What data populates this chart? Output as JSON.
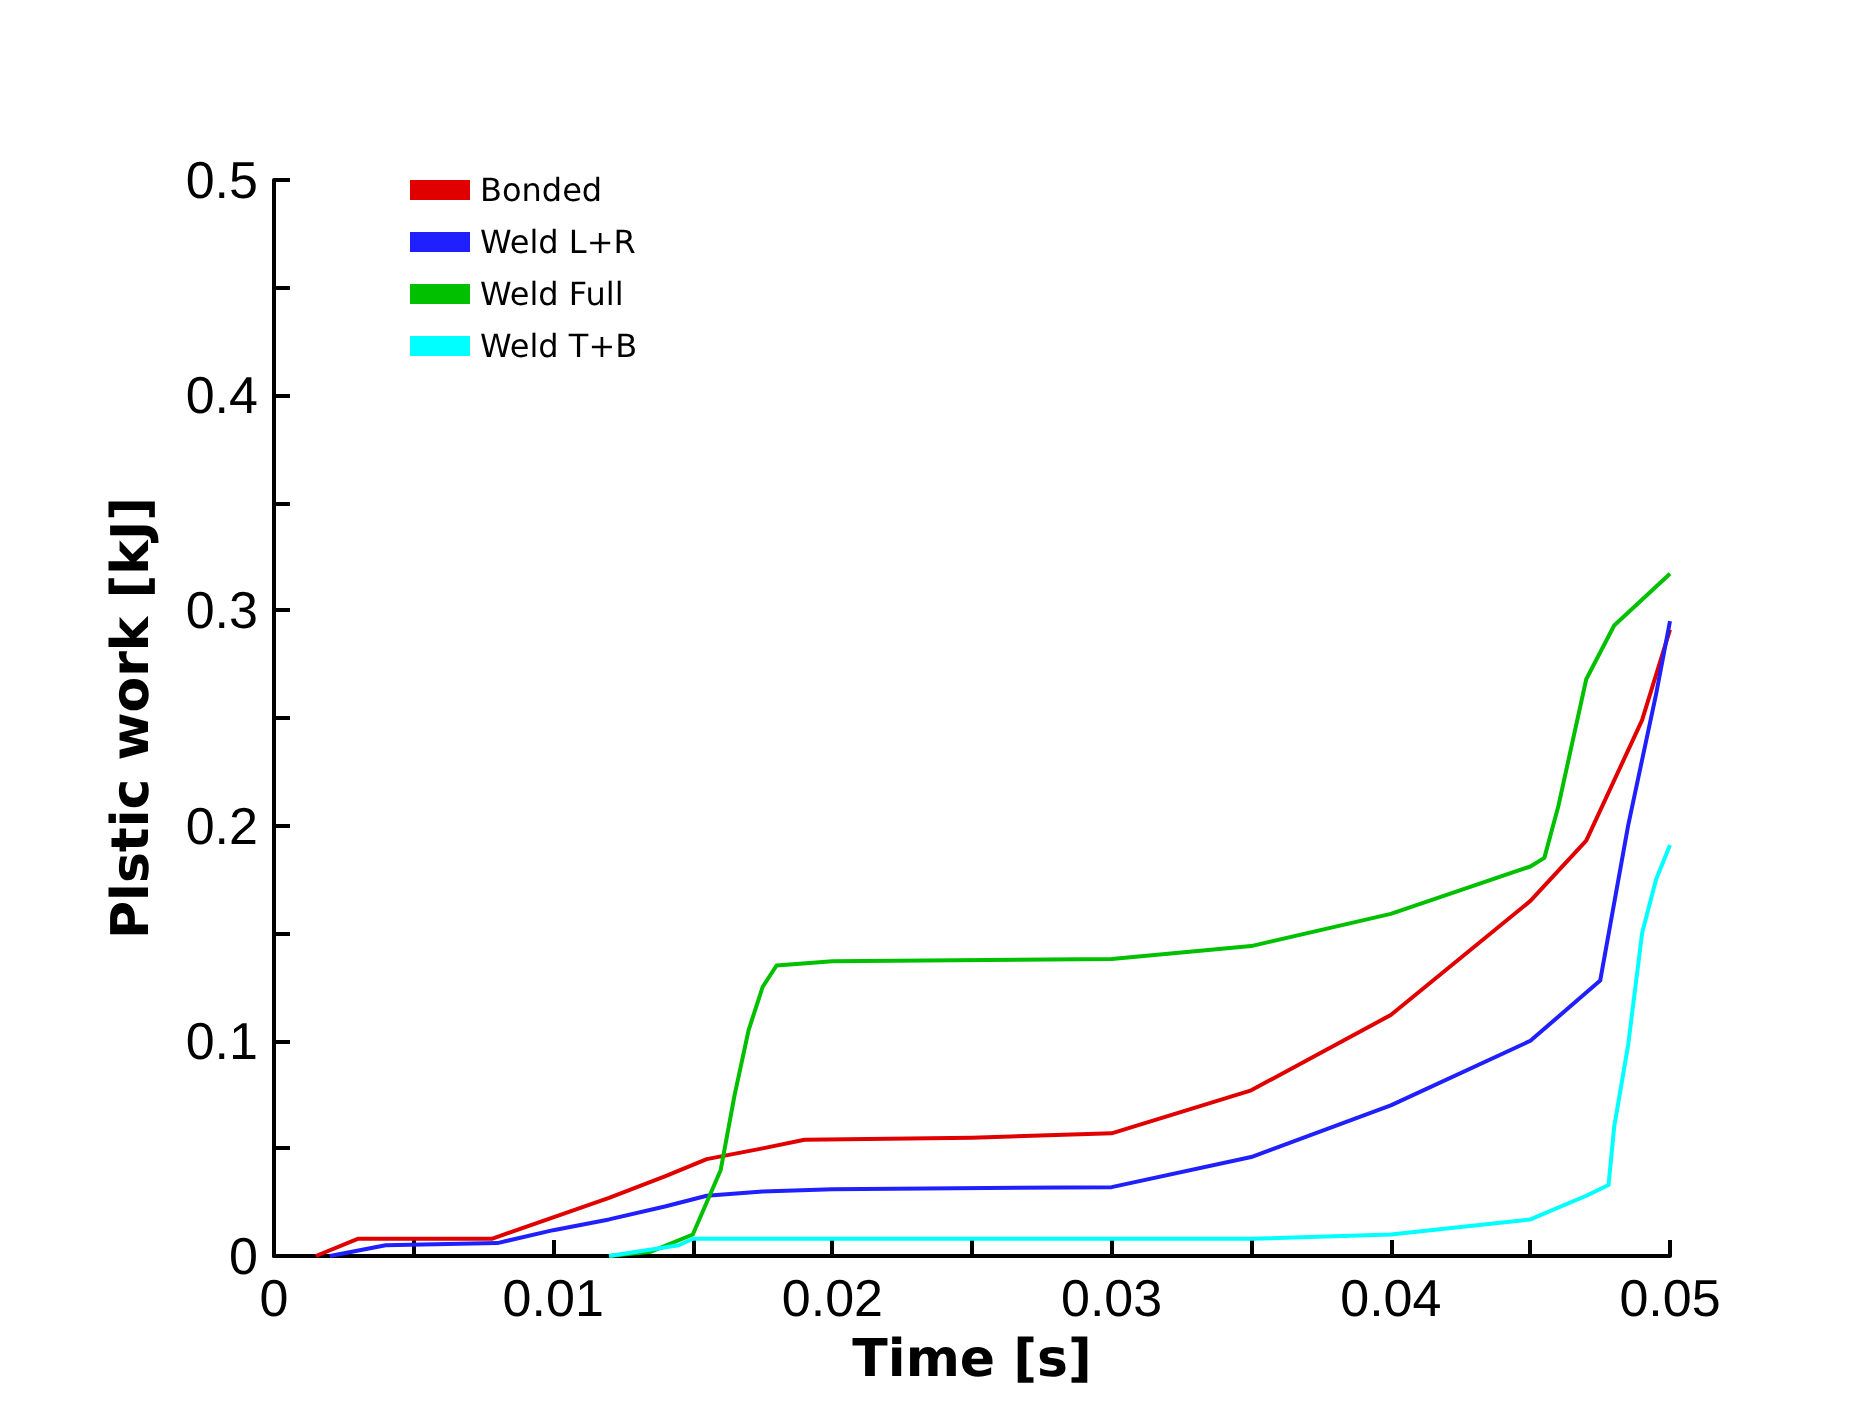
{
  "chart_data": {
    "type": "line",
    "xlabel": "Time [s]",
    "ylabel": "Plstic work [kJ]",
    "xlim": [
      0,
      0.05
    ],
    "ylim": [
      0,
      0.5
    ],
    "xticks": [
      0,
      {
        "value": 0.005,
        "label": null
      },
      0.01,
      {
        "value": 0.015,
        "label": null
      },
      0.02,
      {
        "value": 0.025,
        "label": null
      },
      0.03,
      {
        "value": 0.035,
        "label": null
      },
      0.04,
      {
        "value": 0.045,
        "label": null
      },
      0.05
    ],
    "yticks": [
      0,
      {
        "value": 0.05,
        "label": null
      },
      0.1,
      {
        "value": 0.15,
        "label": null
      },
      0.2,
      {
        "value": 0.25,
        "label": null
      },
      0.3,
      {
        "value": 0.35,
        "label": null
      },
      0.4,
      {
        "value": 0.45,
        "label": null
      },
      0.5
    ],
    "grid": false,
    "legend": "top left",
    "marker": "none",
    "line_style": "solid",
    "series": [
      {
        "name": "Bonded",
        "color": "#e00000",
        "x": [
          0.0015,
          0.003,
          0.0078,
          0.01,
          0.012,
          0.014,
          0.0155,
          0.0175,
          0.019,
          0.025,
          0.03,
          0.035,
          0.04,
          0.045,
          0.047,
          0.049,
          0.05
        ],
        "values": [
          0,
          0.008,
          0.008,
          0.018,
          0.027,
          0.037,
          0.045,
          0.05,
          0.054,
          0.055,
          0.057,
          0.077,
          0.112,
          0.165,
          0.193,
          0.249,
          0.291
        ]
      },
      {
        "name": "Weld L+R",
        "color": "#2020ff",
        "x": [
          0.002,
          0.004,
          0.008,
          0.01,
          0.012,
          0.014,
          0.0155,
          0.0175,
          0.02,
          0.03,
          0.035,
          0.04,
          0.045,
          0.0475,
          0.0485,
          0.0495,
          0.05
        ],
        "values": [
          0,
          0.005,
          0.006,
          0.012,
          0.017,
          0.023,
          0.028,
          0.03,
          0.031,
          0.032,
          0.046,
          0.07,
          0.1,
          0.128,
          0.2,
          0.261,
          0.295
        ]
      },
      {
        "name": "Weld Full",
        "color": "#00c000",
        "x": [
          0.012,
          0.0135,
          0.015,
          0.016,
          0.0165,
          0.017,
          0.0175,
          0.018,
          0.02,
          0.03,
          0.035,
          0.04,
          0.045,
          0.0455,
          0.046,
          0.047,
          0.048,
          0.05
        ],
        "values": [
          0,
          0.002,
          0.01,
          0.04,
          0.075,
          0.105,
          0.125,
          0.135,
          0.137,
          0.138,
          0.144,
          0.159,
          0.181,
          0.185,
          0.209,
          0.268,
          0.293,
          0.317
        ]
      },
      {
        "name": "Weld T+B",
        "color": "#00ffff",
        "x": [
          0.012,
          0.0145,
          0.015,
          0.035,
          0.04,
          0.045,
          0.047,
          0.0478,
          0.048,
          0.0485,
          0.049,
          0.0495,
          0.05
        ],
        "values": [
          0,
          0.005,
          0.008,
          0.008,
          0.01,
          0.017,
          0.028,
          0.033,
          0.06,
          0.098,
          0.15,
          0.175,
          0.191
        ]
      }
    ]
  }
}
